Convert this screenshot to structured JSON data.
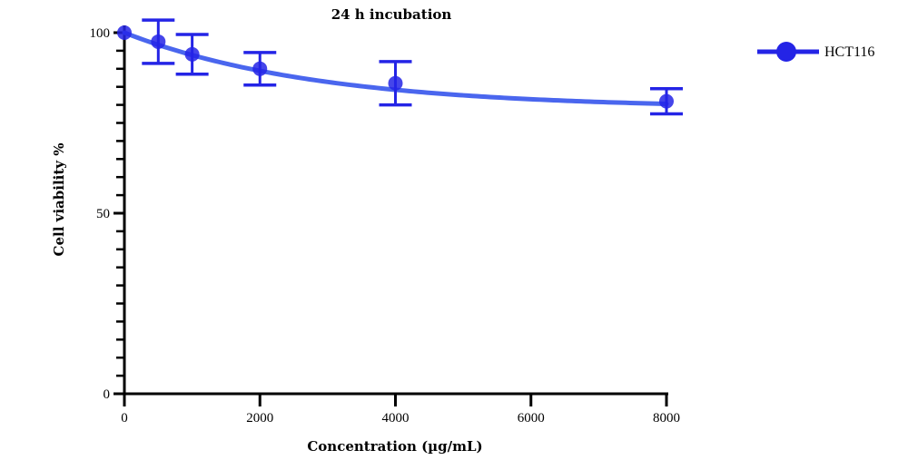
{
  "chart_data": {
    "type": "scatter",
    "title": "24 h incubation",
    "xlabel": "Concentration (µg/mL)",
    "ylabel": "Cell viability %",
    "xlim": [
      0,
      8000
    ],
    "ylim": [
      0,
      100
    ],
    "x_ticks": [
      "0",
      "2000",
      "4000",
      "6000",
      "8000"
    ],
    "y_ticks": [
      "0",
      "50",
      "100"
    ],
    "series": [
      {
        "name": "HCT116",
        "color": "#2424e6",
        "fit_color": "#4a66ee",
        "points": [
          {
            "x": 0,
            "y": 100,
            "err": 0
          },
          {
            "x": 500,
            "y": 97.5,
            "err": 6
          },
          {
            "x": 1000,
            "y": 94,
            "err": 5.5
          },
          {
            "x": 2000,
            "y": 90,
            "err": 4.5
          },
          {
            "x": 4000,
            "y": 86,
            "err": 6
          },
          {
            "x": 8000,
            "y": 81,
            "err": 3.5
          }
        ],
        "fit": {
          "plateau": 79,
          "k": 0.00035
        }
      }
    ],
    "legend_position": "top-right"
  }
}
